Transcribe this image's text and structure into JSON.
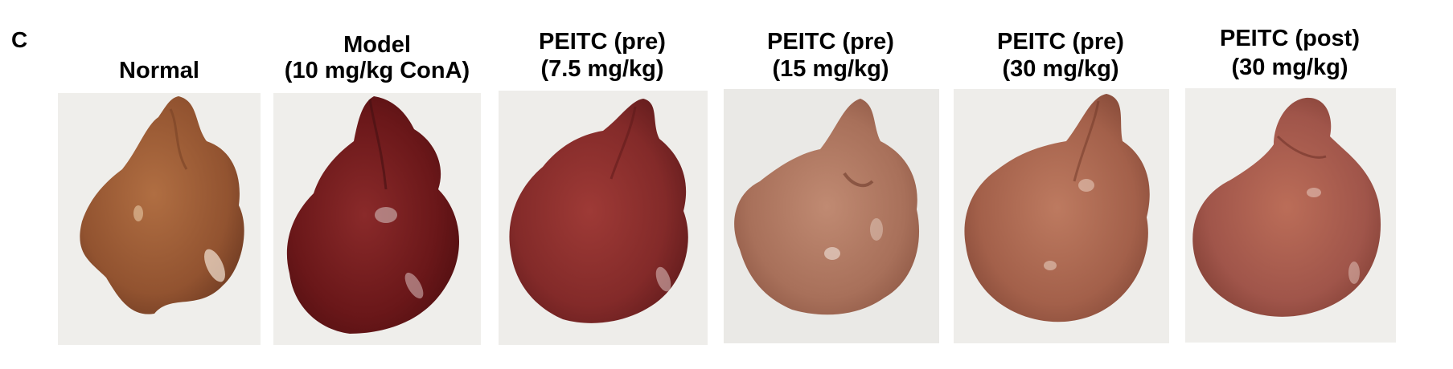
{
  "figure": {
    "panel_label": "C",
    "panels": [
      {
        "line1": "",
        "line2": "Normal",
        "tissue_color": "#9a5a36"
      },
      {
        "line1": "Model",
        "line2": "(10 mg/kg ConA)",
        "tissue_color": "#6e1a1c"
      },
      {
        "line1": "PEITC (pre)",
        "line2": "(7.5 mg/kg)",
        "tissue_color": "#8a2d2c"
      },
      {
        "line1": "PEITC (pre)",
        "line2": "(15 mg/kg)",
        "tissue_color": "#b07660"
      },
      {
        "line1": "PEITC (pre)",
        "line2": "(30 mg/kg)",
        "tissue_color": "#a8634c"
      },
      {
        "line1": "PEITC (post)",
        "line2": "(30 mg/kg)",
        "tissue_color": "#a55b47"
      }
    ]
  }
}
